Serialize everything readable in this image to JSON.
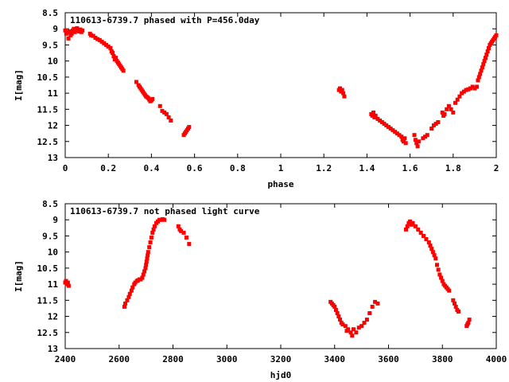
{
  "chart_data": [
    {
      "type": "scatter",
      "title": "110613-6739.7 phased with P=456.0day",
      "xlabel": "phase",
      "ylabel": "I[mag]",
      "xlim": [
        0,
        2
      ],
      "ylim": [
        8.5,
        13
      ],
      "y_inverted": true,
      "xticks": [
        "0",
        "0.2",
        "0.4",
        "0.6",
        "0.8",
        "1",
        "1.2",
        "1.4",
        "1.6",
        "1.8",
        "2"
      ],
      "yticks": [
        "8.5",
        "9",
        "9.5",
        "10",
        "10.5",
        "11",
        "11.5",
        "12",
        "12.5",
        "13"
      ],
      "grid": false,
      "marker_color": "#ff0000",
      "series": [
        {
          "points": [
            [
              0.0,
              9.05
            ],
            [
              0.005,
              9.15
            ],
            [
              0.01,
              9.1
            ],
            [
              0.015,
              9.3
            ],
            [
              0.02,
              9.08
            ],
            [
              0.025,
              9.2
            ],
            [
              0.03,
              9.15
            ],
            [
              0.035,
              9.05
            ],
            [
              0.04,
              9.0
            ],
            [
              0.045,
              9.1
            ],
            [
              0.05,
              9.05
            ],
            [
              0.055,
              8.98
            ],
            [
              0.06,
              9.05
            ],
            [
              0.065,
              9.08
            ],
            [
              0.07,
              9.02
            ],
            [
              0.075,
              9.1
            ],
            [
              0.08,
              9.05
            ],
            [
              0.115,
              9.15
            ],
            [
              0.12,
              9.2
            ],
            [
              0.13,
              9.22
            ],
            [
              0.14,
              9.28
            ],
            [
              0.15,
              9.32
            ],
            [
              0.16,
              9.35
            ],
            [
              0.17,
              9.4
            ],
            [
              0.18,
              9.45
            ],
            [
              0.19,
              9.5
            ],
            [
              0.2,
              9.55
            ],
            [
              0.21,
              9.6
            ],
            [
              0.215,
              9.7
            ],
            [
              0.22,
              9.75
            ],
            [
              0.225,
              9.85
            ],
            [
              0.23,
              9.95
            ],
            [
              0.235,
              9.9
            ],
            [
              0.24,
              10.0
            ],
            [
              0.245,
              10.05
            ],
            [
              0.25,
              10.1
            ],
            [
              0.255,
              10.15
            ],
            [
              0.26,
              10.2
            ],
            [
              0.265,
              10.25
            ],
            [
              0.27,
              10.3
            ],
            [
              0.33,
              10.65
            ],
            [
              0.34,
              10.75
            ],
            [
              0.345,
              10.8
            ],
            [
              0.35,
              10.85
            ],
            [
              0.355,
              10.9
            ],
            [
              0.36,
              10.95
            ],
            [
              0.365,
              11.0
            ],
            [
              0.37,
              11.05
            ],
            [
              0.375,
              11.1
            ],
            [
              0.38,
              11.12
            ],
            [
              0.385,
              11.15
            ],
            [
              0.39,
              11.2
            ],
            [
              0.395,
              11.25
            ],
            [
              0.4,
              11.22
            ],
            [
              0.405,
              11.18
            ],
            [
              0.44,
              11.4
            ],
            [
              0.45,
              11.55
            ],
            [
              0.46,
              11.6
            ],
            [
              0.47,
              11.65
            ],
            [
              0.48,
              11.75
            ],
            [
              0.49,
              11.85
            ],
            [
              0.55,
              12.3
            ],
            [
              0.555,
              12.25
            ],
            [
              0.56,
              12.2
            ],
            [
              0.565,
              12.15
            ],
            [
              0.57,
              12.1
            ],
            [
              0.575,
              12.05
            ],
            [
              1.27,
              10.9
            ],
            [
              1.275,
              10.85
            ],
            [
              1.28,
              10.95
            ],
            [
              1.285,
              10.9
            ],
            [
              1.29,
              11.0
            ],
            [
              1.295,
              11.1
            ],
            [
              1.42,
              11.65
            ],
            [
              1.425,
              11.7
            ],
            [
              1.43,
              11.6
            ],
            [
              1.435,
              11.75
            ],
            [
              1.44,
              11.7
            ],
            [
              1.45,
              11.8
            ],
            [
              1.46,
              11.85
            ],
            [
              1.47,
              11.9
            ],
            [
              1.48,
              11.95
            ],
            [
              1.49,
              12.0
            ],
            [
              1.5,
              12.05
            ],
            [
              1.51,
              12.1
            ],
            [
              1.52,
              12.15
            ],
            [
              1.53,
              12.2
            ],
            [
              1.54,
              12.25
            ],
            [
              1.55,
              12.3
            ],
            [
              1.56,
              12.35
            ],
            [
              1.565,
              12.45
            ],
            [
              1.57,
              12.5
            ],
            [
              1.575,
              12.4
            ],
            [
              1.58,
              12.55
            ],
            [
              1.62,
              12.3
            ],
            [
              1.625,
              12.45
            ],
            [
              1.63,
              12.55
            ],
            [
              1.635,
              12.65
            ],
            [
              1.64,
              12.5
            ],
            [
              1.66,
              12.4
            ],
            [
              1.67,
              12.35
            ],
            [
              1.68,
              12.3
            ],
            [
              1.7,
              12.1
            ],
            [
              1.71,
              12.0
            ],
            [
              1.72,
              11.95
            ],
            [
              1.73,
              11.9
            ],
            [
              1.75,
              11.6
            ],
            [
              1.755,
              11.7
            ],
            [
              1.76,
              11.65
            ],
            [
              1.77,
              11.5
            ],
            [
              1.78,
              11.4
            ],
            [
              1.79,
              11.5
            ],
            [
              1.8,
              11.6
            ],
            [
              1.81,
              11.3
            ],
            [
              1.82,
              11.2
            ],
            [
              1.83,
              11.1
            ],
            [
              1.84,
              11.0
            ],
            [
              1.85,
              10.95
            ],
            [
              1.86,
              10.9
            ],
            [
              1.87,
              10.88
            ],
            [
              1.88,
              10.85
            ],
            [
              1.89,
              10.8
            ],
            [
              1.9,
              10.85
            ],
            [
              1.91,
              10.8
            ],
            [
              1.915,
              10.6
            ],
            [
              1.92,
              10.5
            ],
            [
              1.925,
              10.4
            ],
            [
              1.93,
              10.3
            ],
            [
              1.935,
              10.2
            ],
            [
              1.94,
              10.1
            ],
            [
              1.945,
              10.0
            ],
            [
              1.95,
              9.9
            ],
            [
              1.955,
              9.8
            ],
            [
              1.96,
              9.7
            ],
            [
              1.965,
              9.6
            ],
            [
              1.97,
              9.5
            ],
            [
              1.975,
              9.45
            ],
            [
              1.98,
              9.4
            ],
            [
              1.985,
              9.35
            ],
            [
              1.99,
              9.3
            ],
            [
              1.995,
              9.25
            ],
            [
              2.0,
              9.2
            ]
          ]
        }
      ]
    },
    {
      "type": "scatter",
      "title": "110613-6739.7 not phased light curve",
      "xlabel": "hjd0",
      "ylabel": "I[mag]",
      "xlim": [
        2400,
        4000
      ],
      "ylim": [
        8.5,
        13
      ],
      "y_inverted": true,
      "xticks": [
        "2400",
        "2600",
        "2800",
        "3000",
        "3200",
        "3400",
        "3600",
        "3800",
        "4000"
      ],
      "yticks": [
        "8.5",
        "9",
        "9.5",
        "10",
        "10.5",
        "11",
        "11.5",
        "12",
        "12.5",
        "13"
      ],
      "grid": false,
      "marker_color": "#ff0000",
      "series": [
        {
          "points": [
            [
              2400,
              10.95
            ],
            [
              2403,
              10.9
            ],
            [
              2406,
              11.0
            ],
            [
              2410,
              10.95
            ],
            [
              2413,
              11.05
            ],
            [
              2620,
              11.7
            ],
            [
              2623,
              11.6
            ],
            [
              2630,
              11.5
            ],
            [
              2636,
              11.4
            ],
            [
              2640,
              11.3
            ],
            [
              2646,
              11.2
            ],
            [
              2650,
              11.1
            ],
            [
              2656,
              11.0
            ],
            [
              2660,
              10.95
            ],
            [
              2666,
              10.9
            ],
            [
              2670,
              10.88
            ],
            [
              2676,
              10.85
            ],
            [
              2680,
              10.85
            ],
            [
              2686,
              10.8
            ],
            [
              2690,
              10.7
            ],
            [
              2694,
              10.6
            ],
            [
              2698,
              10.5
            ],
            [
              2700,
              10.4
            ],
            [
              2702,
              10.3
            ],
            [
              2704,
              10.2
            ],
            [
              2706,
              10.1
            ],
            [
              2708,
              10.0
            ],
            [
              2712,
              9.85
            ],
            [
              2716,
              9.7
            ],
            [
              2720,
              9.55
            ],
            [
              2724,
              9.4
            ],
            [
              2728,
              9.3
            ],
            [
              2732,
              9.2
            ],
            [
              2738,
              9.1
            ],
            [
              2744,
              9.05
            ],
            [
              2750,
              9.0
            ],
            [
              2756,
              9.0
            ],
            [
              2762,
              8.98
            ],
            [
              2768,
              9.0
            ],
            [
              2820,
              9.2
            ],
            [
              2825,
              9.3
            ],
            [
              2830,
              9.35
            ],
            [
              2840,
              9.4
            ],
            [
              2850,
              9.55
            ],
            [
              2860,
              9.75
            ],
            [
              3385,
              11.55
            ],
            [
              3390,
              11.6
            ],
            [
              3395,
              11.65
            ],
            [
              3400,
              11.7
            ],
            [
              3405,
              11.8
            ],
            [
              3410,
              11.9
            ],
            [
              3415,
              12.0
            ],
            [
              3420,
              12.1
            ],
            [
              3425,
              12.2
            ],
            [
              3430,
              12.25
            ],
            [
              3440,
              12.3
            ],
            [
              3445,
              12.45
            ],
            [
              3450,
              12.4
            ],
            [
              3460,
              12.5
            ],
            [
              3465,
              12.6
            ],
            [
              3470,
              12.4
            ],
            [
              3480,
              12.5
            ],
            [
              3490,
              12.35
            ],
            [
              3500,
              12.3
            ],
            [
              3510,
              12.2
            ],
            [
              3520,
              12.1
            ],
            [
              3530,
              11.9
            ],
            [
              3540,
              11.7
            ],
            [
              3550,
              11.55
            ],
            [
              3560,
              11.6
            ],
            [
              3665,
              9.3
            ],
            [
              3670,
              9.2
            ],
            [
              3675,
              9.1
            ],
            [
              3680,
              9.05
            ],
            [
              3685,
              9.15
            ],
            [
              3690,
              9.1
            ],
            [
              3700,
              9.2
            ],
            [
              3710,
              9.3
            ],
            [
              3720,
              9.4
            ],
            [
              3730,
              9.5
            ],
            [
              3740,
              9.6
            ],
            [
              3750,
              9.7
            ],
            [
              3755,
              9.8
            ],
            [
              3760,
              9.9
            ],
            [
              3765,
              10.0
            ],
            [
              3770,
              10.1
            ],
            [
              3775,
              10.2
            ],
            [
              3780,
              10.4
            ],
            [
              3785,
              10.55
            ],
            [
              3790,
              10.7
            ],
            [
              3795,
              10.8
            ],
            [
              3800,
              10.9
            ],
            [
              3805,
              11.0
            ],
            [
              3810,
              11.05
            ],
            [
              3815,
              11.1
            ],
            [
              3820,
              11.15
            ],
            [
              3825,
              11.2
            ],
            [
              3840,
              11.5
            ],
            [
              3845,
              11.6
            ],
            [
              3850,
              11.7
            ],
            [
              3855,
              11.8
            ],
            [
              3860,
              11.85
            ],
            [
              3890,
              12.3
            ],
            [
              3893,
              12.25
            ],
            [
              3896,
              12.2
            ],
            [
              3900,
              12.1
            ]
          ]
        }
      ]
    }
  ]
}
